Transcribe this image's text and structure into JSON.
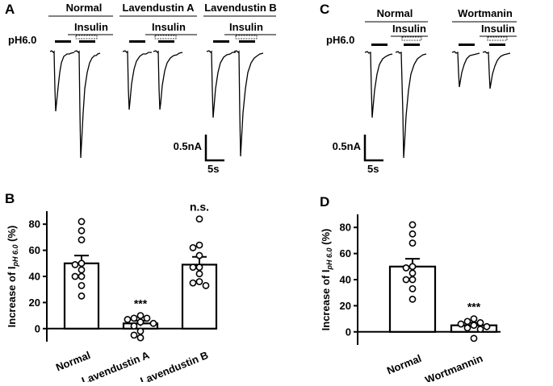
{
  "panels": {
    "A": {
      "label": "A",
      "condition_headers": [
        "Normal",
        "Lavendustin A",
        "Lavendustin B"
      ],
      "insulin_label": "Insulin",
      "ph_label": "pH6.0",
      "scale_current": "0.5nA",
      "scale_time": "5s"
    },
    "C": {
      "label": "C",
      "condition_headers": [
        "Normal",
        "Wortmanin"
      ],
      "insulin_label": "Insulin",
      "ph_label": "pH6.0",
      "scale_current": "0.5nA",
      "scale_time": "5s"
    },
    "B": {
      "label": "B"
    },
    "D": {
      "label": "D"
    }
  },
  "chart_data": [
    {
      "panel": "B",
      "type": "bar",
      "ylabel_main": "Increase of I",
      "ylabel_sub": "pH 6.0",
      "ylabel_unit": " (%)",
      "ylim": [
        -10,
        90
      ],
      "yticks": [
        0,
        20,
        40,
        60,
        80
      ],
      "categories": [
        "Normal",
        "Lavendustin A",
        "Lavendustin B"
      ],
      "values": [
        50,
        4,
        49
      ],
      "errors": [
        6,
        2,
        6
      ],
      "significance": [
        "",
        "***",
        "n.s."
      ],
      "points": [
        [
          82,
          75,
          68,
          50,
          49,
          45,
          40,
          40,
          33,
          25
        ],
        [
          10,
          8,
          8,
          7,
          5,
          4,
          2,
          -2,
          -5,
          -7
        ],
        [
          84,
          64,
          62,
          56,
          47,
          47,
          42,
          36,
          35,
          33
        ]
      ]
    },
    {
      "panel": "D",
      "type": "bar",
      "ylabel_main": "Increase of I",
      "ylabel_sub": "pH 6.0",
      "ylabel_unit": " (%)",
      "ylim": [
        -10,
        90
      ],
      "yticks": [
        0,
        20,
        40,
        60,
        80
      ],
      "categories": [
        "Normal",
        "Wortmannin"
      ],
      "values": [
        50,
        5
      ],
      "errors": [
        6,
        2
      ],
      "significance": [
        "",
        "***"
      ],
      "points": [
        [
          82,
          75,
          68,
          50,
          49,
          45,
          40,
          40,
          33,
          25
        ],
        [
          10,
          8,
          7,
          6,
          5,
          4,
          3,
          2,
          -5
        ]
      ]
    }
  ]
}
